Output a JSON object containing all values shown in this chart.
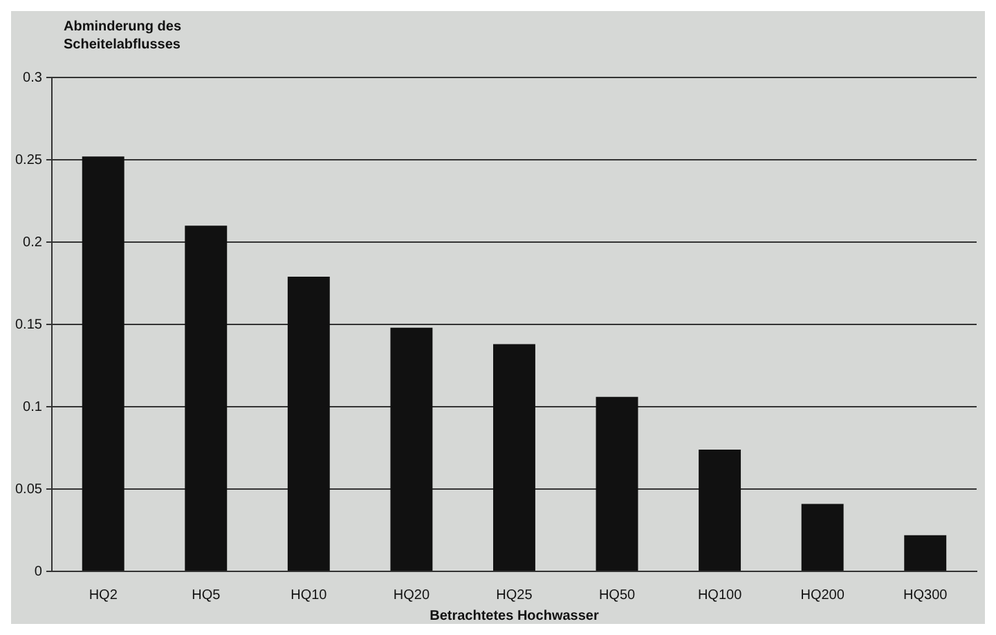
{
  "chart_data": {
    "type": "bar",
    "ylabel": "Abminderung des Scheitelabflusses",
    "xlabel": "Betrachtetes Hochwasser",
    "categories": [
      "HQ2",
      "HQ5",
      "HQ10",
      "HQ20",
      "HQ25",
      "HQ50",
      "HQ100",
      "HQ200",
      "HQ300"
    ],
    "values": [
      0.252,
      0.21,
      0.179,
      0.148,
      0.138,
      0.106,
      0.074,
      0.041,
      0.022
    ],
    "color": "#111111",
    "ylim": [
      0,
      0.3
    ],
    "yticks": [
      0,
      0.05,
      0.1,
      0.15,
      0.2,
      0.25,
      0.3
    ],
    "grid": "y",
    "legend": false
  }
}
